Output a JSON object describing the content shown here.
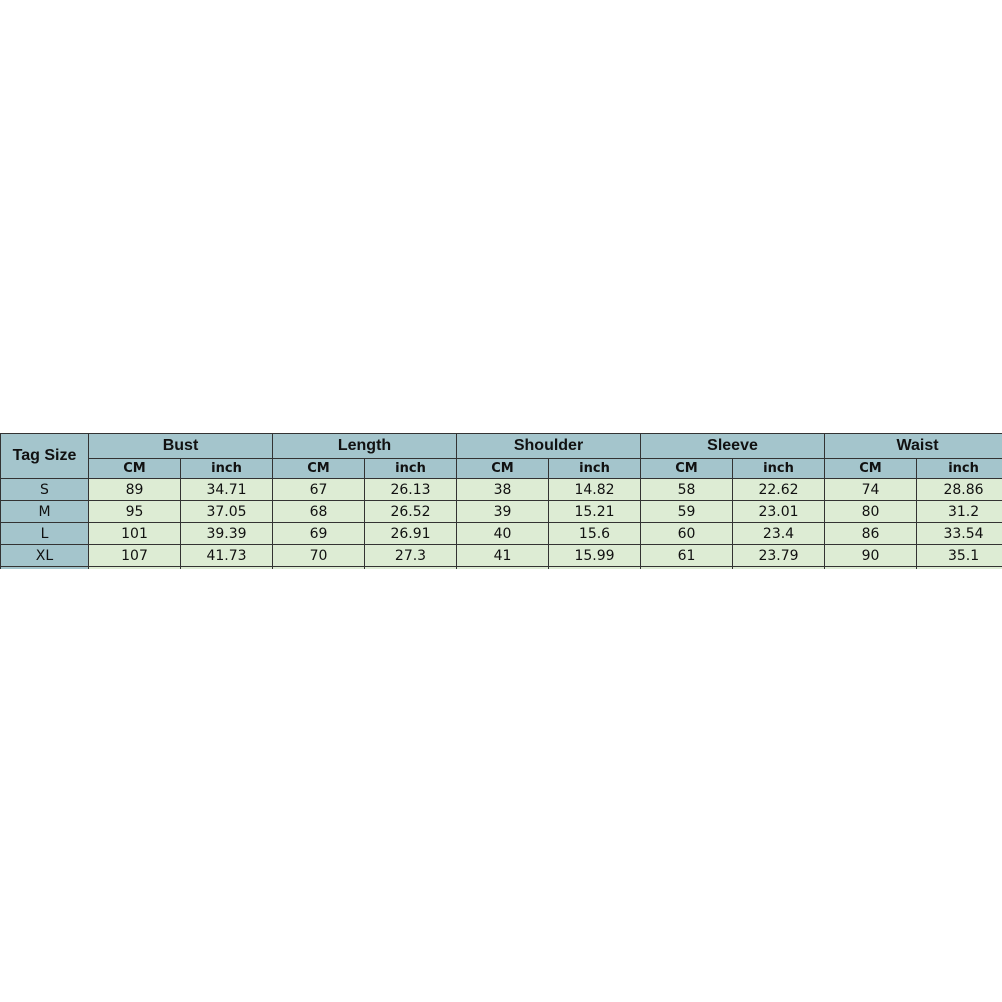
{
  "table": {
    "tag_header": "Tag Size",
    "groups": [
      "Bust",
      "Length",
      "Shoulder",
      "Sleeve",
      "Waist"
    ],
    "units": [
      "CM",
      "inch"
    ],
    "rows": [
      {
        "size": "S",
        "values": [
          "89",
          "34.71",
          "67",
          "26.13",
          "38",
          "14.82",
          "58",
          "22.62",
          "74",
          "28.86"
        ]
      },
      {
        "size": "M",
        "values": [
          "95",
          "37.05",
          "68",
          "26.52",
          "39",
          "15.21",
          "59",
          "23.01",
          "80",
          "31.2"
        ]
      },
      {
        "size": "L",
        "values": [
          "101",
          "39.39",
          "69",
          "26.91",
          "40",
          "15.6",
          "60",
          "23.4",
          "86",
          "33.54"
        ]
      },
      {
        "size": "XL",
        "values": [
          "107",
          "41.73",
          "70",
          "27.3",
          "41",
          "15.99",
          "61",
          "23.79",
          "90",
          "35.1"
        ]
      }
    ]
  },
  "colors": {
    "header_bg": "#a4c5cc",
    "cell_bg": "#ddecd4"
  }
}
